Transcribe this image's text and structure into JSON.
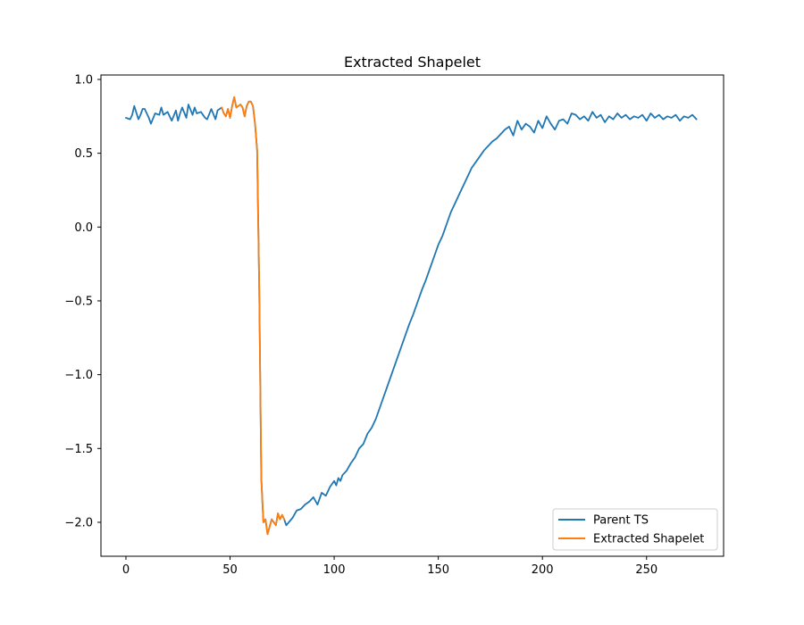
{
  "chart_data": {
    "type": "line",
    "title": "Extracted Shapelet",
    "xlabel": "",
    "ylabel": "",
    "xlim": [
      -12,
      287
    ],
    "ylim": [
      -2.23,
      1.03
    ],
    "xticks": [
      0,
      50,
      100,
      150,
      200,
      250
    ],
    "xtick_labels": [
      "0",
      "50",
      "100",
      "150",
      "200",
      "250"
    ],
    "yticks": [
      1.0,
      0.5,
      0.0,
      -0.5,
      -1.0,
      -1.5,
      -2.0
    ],
    "ytick_labels": [
      "1.0",
      "0.5",
      "0.0",
      "−0.5",
      "−1.0",
      "−1.5",
      "−2.0"
    ],
    "grid": false,
    "legend_position": "lower-right",
    "series": [
      {
        "name": "Parent TS",
        "color": "#1f77b4",
        "x": [
          0,
          2,
          3,
          4,
          6,
          7,
          8,
          9,
          11,
          12,
          14,
          16,
          17,
          18,
          20,
          22,
          24,
          25,
          26,
          27,
          29,
          30,
          32,
          33,
          34,
          36,
          38,
          39,
          41,
          43,
          44,
          46,
          47,
          48,
          49,
          50,
          51,
          52,
          53,
          55,
          56,
          57,
          58,
          59,
          60,
          61,
          62,
          63,
          64,
          65,
          66,
          67,
          68,
          70,
          71,
          72,
          73,
          74,
          75,
          76,
          77,
          80,
          82,
          84,
          86,
          88,
          90,
          92,
          94,
          96,
          98,
          100,
          101,
          102,
          103,
          104,
          106,
          108,
          110,
          112,
          114,
          116,
          118,
          120,
          122,
          124,
          126,
          128,
          130,
          132,
          134,
          136,
          138,
          140,
          142,
          144,
          146,
          148,
          150,
          152,
          154,
          156,
          158,
          160,
          162,
          164,
          166,
          168,
          170,
          172,
          174,
          176,
          178,
          180,
          182,
          184,
          186,
          188,
          190,
          192,
          194,
          196,
          198,
          200,
          202,
          204,
          206,
          208,
          210,
          212,
          214,
          216,
          218,
          220,
          222,
          224,
          226,
          228,
          230,
          232,
          234,
          236,
          238,
          240,
          242,
          244,
          246,
          248,
          250,
          252,
          254,
          256,
          258,
          260,
          262,
          264,
          266,
          268,
          270,
          272,
          274
        ],
        "y": [
          0.74,
          0.73,
          0.76,
          0.82,
          0.73,
          0.76,
          0.8,
          0.8,
          0.74,
          0.7,
          0.77,
          0.76,
          0.81,
          0.76,
          0.78,
          0.72,
          0.79,
          0.72,
          0.77,
          0.81,
          0.74,
          0.83,
          0.76,
          0.81,
          0.77,
          0.78,
          0.74,
          0.73,
          0.8,
          0.73,
          0.79,
          0.81,
          0.77,
          0.75,
          0.8,
          0.74,
          0.82,
          0.88,
          0.81,
          0.83,
          0.81,
          0.75,
          0.82,
          0.85,
          0.85,
          0.82,
          0.7,
          0.52,
          -0.4,
          -1.7,
          -2.0,
          -1.98,
          -2.08,
          -1.98,
          -2.0,
          -2.02,
          -1.94,
          -1.98,
          -1.95,
          -1.98,
          -2.02,
          -1.97,
          -1.92,
          -1.91,
          -1.88,
          -1.86,
          -1.83,
          -1.88,
          -1.8,
          -1.82,
          -1.76,
          -1.72,
          -1.75,
          -1.7,
          -1.72,
          -1.68,
          -1.65,
          -1.6,
          -1.56,
          -1.5,
          -1.47,
          -1.4,
          -1.36,
          -1.3,
          -1.22,
          -1.14,
          -1.06,
          -0.98,
          -0.9,
          -0.82,
          -0.74,
          -0.66,
          -0.59,
          -0.51,
          -0.43,
          -0.36,
          -0.28,
          -0.2,
          -0.12,
          -0.06,
          0.02,
          0.1,
          0.16,
          0.22,
          0.28,
          0.34,
          0.4,
          0.44,
          0.48,
          0.52,
          0.55,
          0.58,
          0.6,
          0.63,
          0.66,
          0.68,
          0.62,
          0.72,
          0.66,
          0.7,
          0.68,
          0.64,
          0.72,
          0.67,
          0.75,
          0.7,
          0.66,
          0.72,
          0.73,
          0.7,
          0.77,
          0.76,
          0.73,
          0.75,
          0.72,
          0.78,
          0.74,
          0.76,
          0.71,
          0.75,
          0.73,
          0.77,
          0.74,
          0.76,
          0.73,
          0.75,
          0.74,
          0.76,
          0.72,
          0.77,
          0.74,
          0.76,
          0.73,
          0.75,
          0.74,
          0.76,
          0.72,
          0.75,
          0.74,
          0.76,
          0.73
        ]
      },
      {
        "name": "Extracted Shapelet",
        "color": "#ff7f0e",
        "x": [
          46,
          47,
          48,
          49,
          50,
          51,
          52,
          53,
          55,
          56,
          57,
          58,
          59,
          60,
          61,
          62,
          63,
          64,
          65,
          66,
          67,
          68,
          70,
          71,
          72,
          73,
          74,
          75,
          76
        ],
        "y": [
          0.81,
          0.77,
          0.75,
          0.8,
          0.74,
          0.82,
          0.88,
          0.81,
          0.83,
          0.81,
          0.75,
          0.82,
          0.85,
          0.85,
          0.82,
          0.7,
          0.52,
          -0.4,
          -1.7,
          -2.0,
          -1.98,
          -2.08,
          -1.98,
          -2.0,
          -2.02,
          -1.94,
          -1.98,
          -1.95,
          -1.98
        ]
      }
    ]
  }
}
